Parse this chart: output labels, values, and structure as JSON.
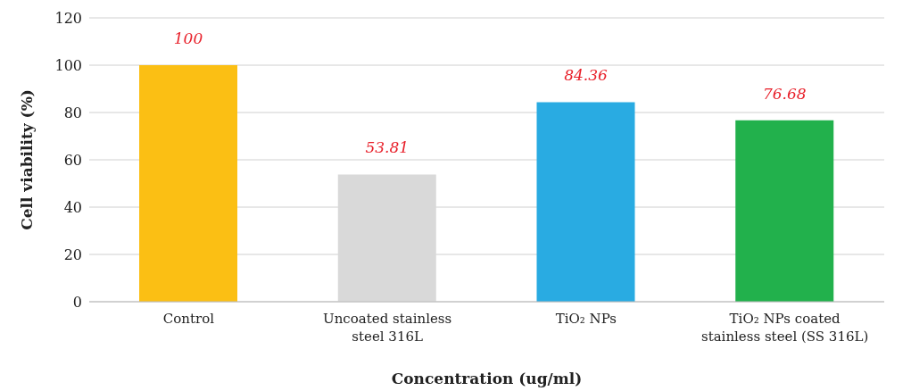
{
  "chart_data": {
    "type": "bar",
    "xlabel": "Concentration (ug/ml)",
    "ylabel": "Cell viability (%)",
    "categories": [
      "Control",
      "Uncoated stainless steel 316L",
      "TiO₂ NPs",
      "TiO₂ NPs coated stainless steel (SS 316L)"
    ],
    "values": [
      100,
      53.81,
      84.36,
      76.68
    ],
    "colors": [
      "#fbbf14",
      "#d9d9d9",
      "#29abe2",
      "#22b14c"
    ],
    "ylim": [
      0,
      120
    ],
    "yticks": [
      0,
      20,
      40,
      60,
      80,
      100,
      120
    ],
    "grid": "y",
    "data_labels": true
  }
}
